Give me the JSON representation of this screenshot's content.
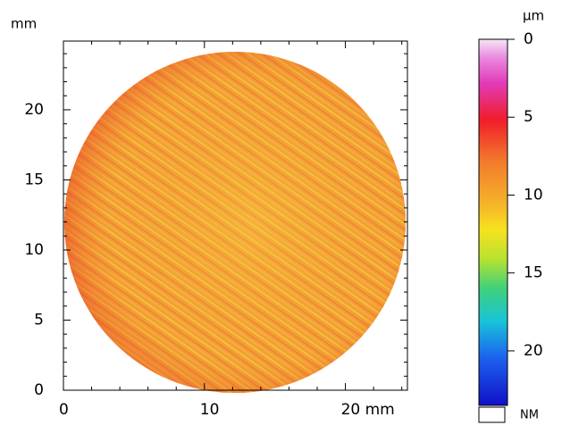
{
  "chart_data": {
    "type": "heatmap",
    "y_unit": "mm",
    "xlim": [
      0,
      24.4
    ],
    "ylim": [
      0,
      24.9
    ],
    "xticks": [
      0,
      10,
      {
        "value": 20,
        "label": "20 mm"
      }
    ],
    "yticks": [
      0,
      5,
      10,
      15,
      20
    ],
    "xminorticks": [
      2,
      4,
      6,
      8,
      12,
      14,
      16,
      18,
      22,
      24
    ],
    "yminorticks": [
      1,
      2,
      3,
      4,
      6,
      7,
      8,
      9,
      11,
      12,
      13,
      14,
      16,
      17,
      18,
      19,
      21,
      22,
      23,
      24
    ],
    "colorbar": {
      "label": "µm",
      "lim": [
        0,
        23.5
      ],
      "ticks": [
        0,
        5,
        10,
        15,
        20
      ]
    },
    "legend": [
      "NM"
    ]
  }
}
